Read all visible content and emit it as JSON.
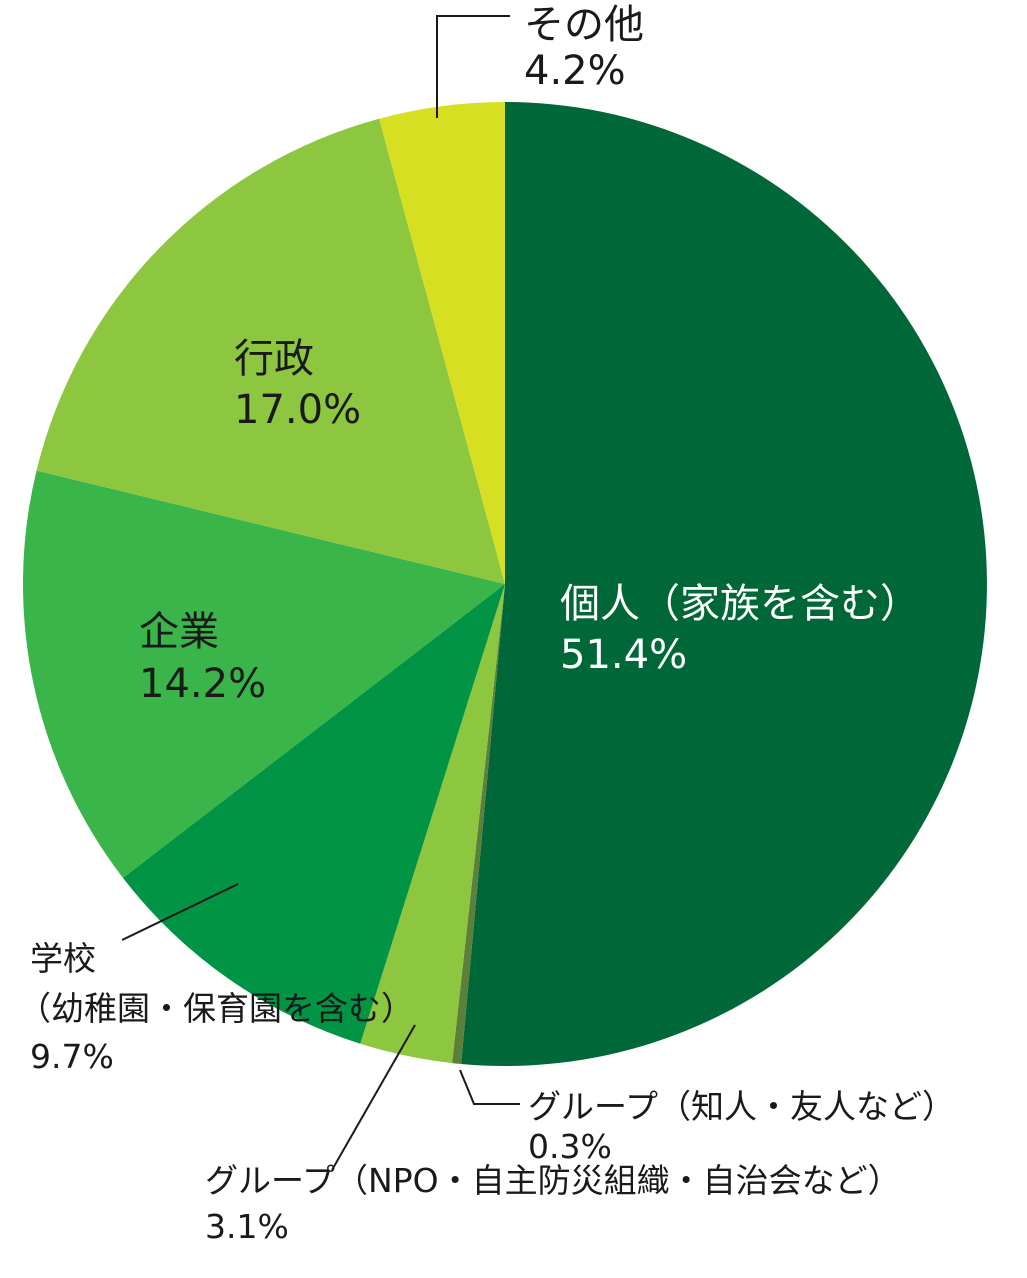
{
  "chart_data": {
    "type": "pie",
    "start_angle_deg": 0,
    "direction": "clockwise",
    "slices": [
      {
        "key": "individual",
        "label": "個人（家族を含む）",
        "value": 51.4,
        "value_label": "51.4%",
        "color": "#006838"
      },
      {
        "key": "group_friends",
        "label": "グループ（知人・友人など）",
        "value": 0.3,
        "value_label": "0.3%",
        "color": "#5c7f3a"
      },
      {
        "key": "group_npo",
        "label": "グループ（NPO・自主防災組織・自治会など）",
        "value": 3.1,
        "value_label": "3.1%",
        "color": "#8dc63f"
      },
      {
        "key": "school",
        "label_line1": "学校",
        "label_line2": "（幼稚園・保育園を含む）",
        "value": 9.7,
        "value_label": "9.7%",
        "color": "#009444"
      },
      {
        "key": "company",
        "label": "企業",
        "value": 14.2,
        "value_label": "14.2%",
        "color": "#39b54a"
      },
      {
        "key": "government",
        "label": "行政",
        "value": 17.0,
        "value_label": "17.0%",
        "color": "#8dc63f"
      },
      {
        "key": "other",
        "label": "その他",
        "value": 4.2,
        "value_label": "4.2%",
        "color": "#d7df23"
      }
    ]
  }
}
